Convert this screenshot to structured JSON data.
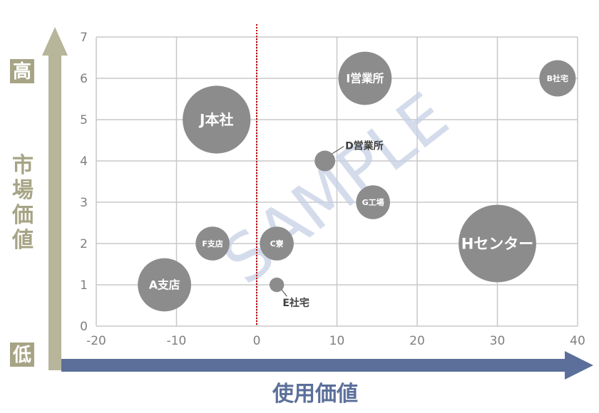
{
  "chart_data": {
    "type": "bubble",
    "xlabel": "使用価値",
    "ylabel": "市場価値",
    "ylabel_high": "高",
    "ylabel_low": "低",
    "watermark": "SAMPLE",
    "xlim": [
      -20,
      40
    ],
    "ylim": [
      0,
      7
    ],
    "xticks": [
      "-20",
      "-10",
      "0",
      "10",
      "20",
      "30",
      "40"
    ],
    "yticks": [
      "0",
      "1",
      "2",
      "3",
      "4",
      "5",
      "6",
      "7"
    ],
    "grid": true,
    "reference_line_x": 0,
    "points": [
      {
        "label": "A支店",
        "x": -11.5,
        "y": 1.0,
        "size": 2.2
      },
      {
        "label": "B社宅",
        "x": 37.5,
        "y": 6.0,
        "size": 1.5
      },
      {
        "label": "C寮",
        "x": 2.5,
        "y": 2.0,
        "size": 1.4
      },
      {
        "label": "D営業所",
        "x": 8.5,
        "y": 4.0,
        "size": 0.85
      },
      {
        "label": "E社宅",
        "x": 2.5,
        "y": 1.0,
        "size": 0.6
      },
      {
        "label": "F支店",
        "x": -5.5,
        "y": 2.0,
        "size": 1.4
      },
      {
        "label": "G工場",
        "x": 14.5,
        "y": 3.0,
        "size": 1.4
      },
      {
        "label": "Hセンター",
        "x": 30.0,
        "y": 2.0,
        "size": 3.2
      },
      {
        "label": "I営業所",
        "x": 13.5,
        "y": 6.0,
        "size": 2.2
      },
      {
        "label": "J本社",
        "x": -5.0,
        "y": 5.0,
        "size": 2.8
      }
    ]
  },
  "colors": {
    "bubble": "#8c8c8c",
    "grid": "#c8c8c8",
    "reference_line": "#c00000",
    "y_arrow": "#b7b59a",
    "x_arrow": "#5b6f9a",
    "x_title": "#5b6f9a",
    "y_title": "#a6a485",
    "watermark": "#c5d0e6"
  }
}
